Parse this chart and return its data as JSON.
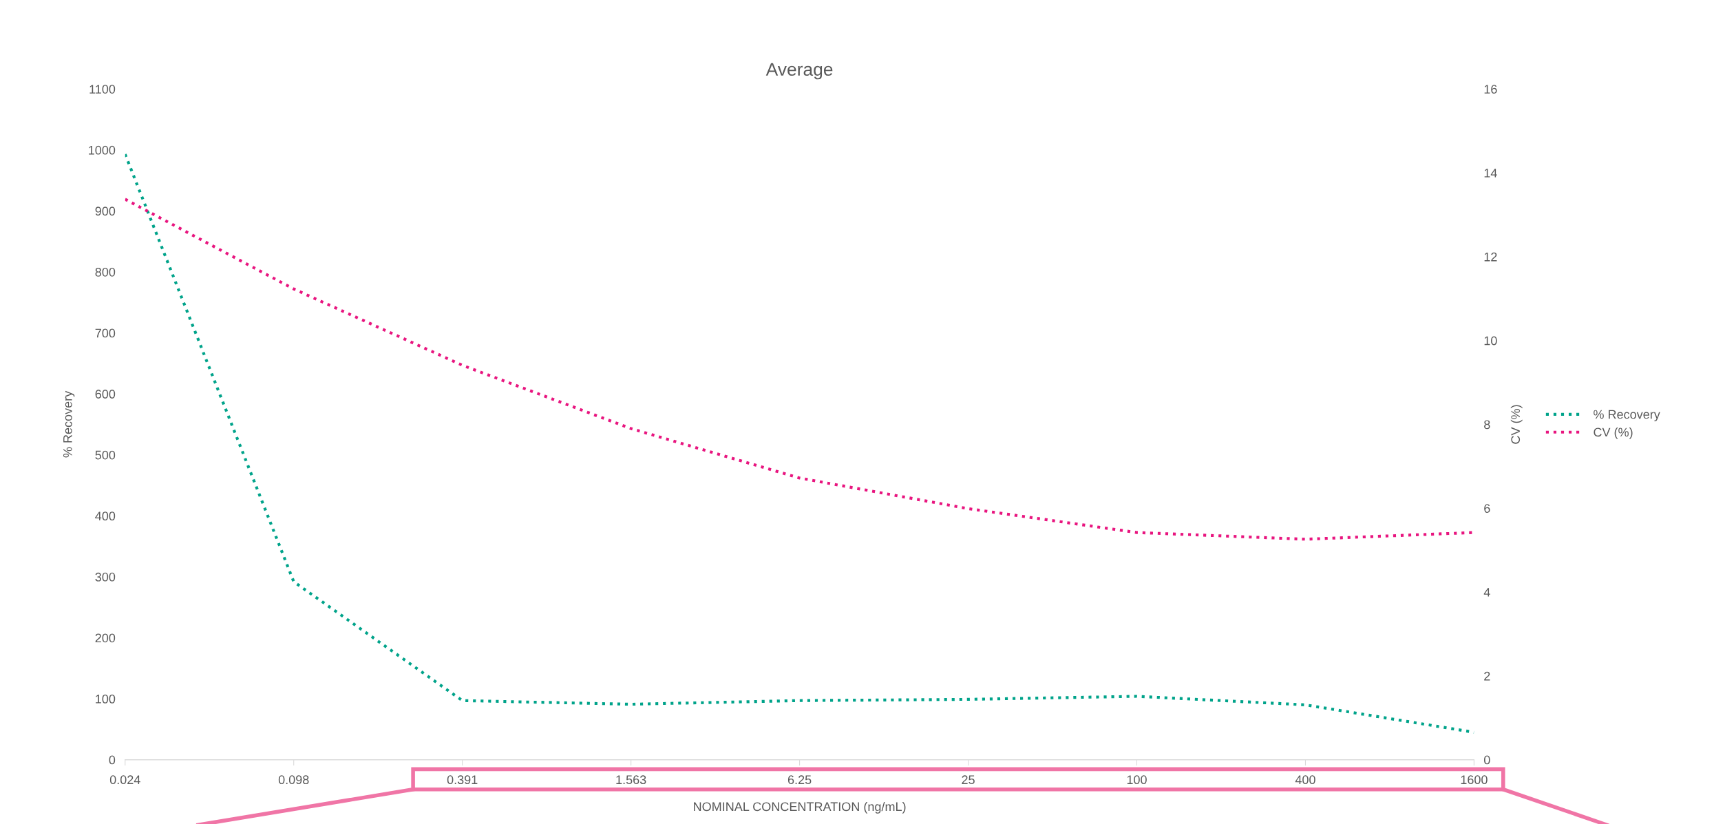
{
  "chart_data": {
    "type": "line",
    "title": "Average",
    "xlabel": "NOMINAL CONCENTRATION (ng/mL)",
    "ylabel": "% Recovery",
    "y2label": "CV (%)",
    "categories": [
      "0.024",
      "0.098",
      "0.391",
      "1.563",
      "6.25",
      "25",
      "100",
      "400",
      "1600"
    ],
    "series": [
      {
        "name": "% Recovery",
        "color": "#00a38a",
        "values": [
          993,
          292,
          97,
          91,
          97,
          99,
          104,
          90,
          45
        ]
      },
      {
        "name": "CV (%)",
        "color": "#e8157f",
        "axis": "y2",
        "values": [
          13.37,
          11.23,
          9.41,
          7.9,
          6.72,
          5.99,
          5.42,
          5.26,
          5.42
        ]
      }
    ],
    "ylim": [
      0,
      1100
    ],
    "yticks": [
      0,
      100,
      200,
      300,
      400,
      500,
      600,
      700,
      800,
      900,
      1000,
      1100
    ],
    "y2lim": [
      0,
      16
    ],
    "y2ticks": [
      0,
      2,
      4,
      6,
      8,
      10,
      12,
      14,
      16
    ],
    "grid": false,
    "legend": "right",
    "line_style": "dotted",
    "marker": "none"
  }
}
